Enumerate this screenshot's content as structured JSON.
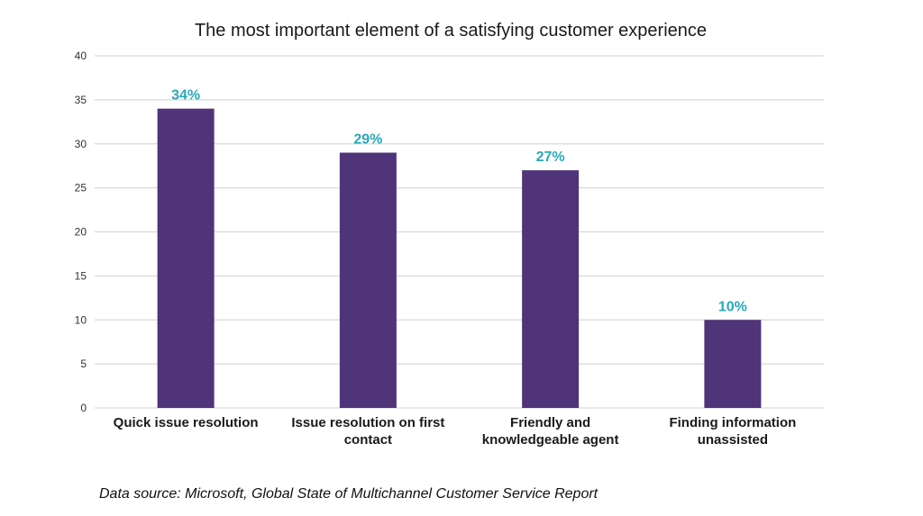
{
  "chart_data": {
    "type": "bar",
    "title": "The most important element of a satisfying customer experience",
    "categories": [
      [
        "Quick issue resolution"
      ],
      [
        "Issue resolution on first",
        "contact"
      ],
      [
        "Friendly and",
        "knowledgeable agent"
      ],
      [
        "Finding information",
        "unassisted"
      ]
    ],
    "values": [
      34,
      29,
      27,
      10
    ],
    "data_labels": [
      "34%",
      "29%",
      "27%",
      "10%"
    ],
    "ylim": [
      0,
      40
    ],
    "yticks": [
      "0",
      "5",
      "10",
      "15",
      "20",
      "25",
      "30",
      "35",
      "40"
    ],
    "grid": true,
    "bar_color": "#4f3479",
    "label_color": "#2aa8b8",
    "grid_color": "#d9d9d9"
  },
  "source": "Data source: Microsoft, Global State of Multichannel Customer Service Report"
}
